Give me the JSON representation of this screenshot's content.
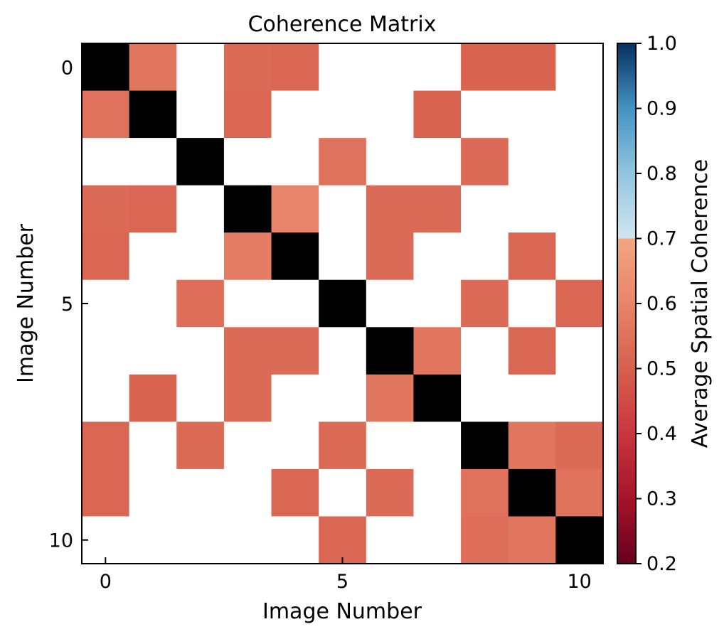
{
  "chart_data": {
    "type": "heatmap",
    "title": "Coherence Matrix",
    "xlabel": "Image Number",
    "ylabel": "Image Number",
    "xticks": [
      0,
      5,
      10
    ],
    "yticks": [
      0,
      5,
      10
    ],
    "xlim": [
      -0.5,
      10.5
    ],
    "ylim": [
      -0.5,
      10.5
    ],
    "y_inverted": true,
    "diagonal_color": "#000000",
    "missing_color": "#ffffff",
    "matrix": [
      [
        null,
        0.56,
        0,
        0.53,
        0.52,
        0,
        0,
        0,
        0.51,
        0.51,
        0
      ],
      [
        0.55,
        null,
        0,
        0.52,
        0,
        0,
        0,
        0.51,
        0,
        0,
        0
      ],
      [
        0,
        0,
        null,
        0,
        0,
        0.55,
        0,
        0,
        0.53,
        0,
        0
      ],
      [
        0.53,
        0.52,
        0,
        null,
        0.6,
        0,
        0.53,
        0.53,
        0,
        0,
        0
      ],
      [
        0.52,
        0,
        0,
        0.58,
        null,
        0,
        0.53,
        0,
        0,
        0.52,
        0
      ],
      [
        0,
        0,
        0.54,
        0,
        0,
        null,
        0,
        0,
        0.53,
        0,
        0.52
      ],
      [
        0,
        0,
        0,
        0.53,
        0.53,
        0,
        null,
        0.56,
        0,
        0.52,
        0
      ],
      [
        0,
        0.51,
        0,
        0.53,
        0,
        0,
        0.56,
        null,
        0,
        0,
        0
      ],
      [
        0.52,
        0,
        0.53,
        0,
        0,
        0.53,
        0,
        0,
        null,
        0.56,
        0.53
      ],
      [
        0.52,
        0,
        0,
        0,
        0.52,
        0,
        0.53,
        0,
        0.55,
        null,
        0.55
      ],
      [
        0,
        0,
        0,
        0,
        0,
        0.52,
        0,
        0,
        0.54,
        0.56,
        null
      ]
    ],
    "colorbar": {
      "label": "Average Spatial Coherence",
      "vmin": 0.2,
      "vmax": 1.0,
      "ticks": [
        "0.2",
        "0.3",
        "0.4",
        "0.5",
        "0.6",
        "0.7",
        "0.8",
        "0.9",
        "1.0"
      ],
      "colormap": "RdBu",
      "stops": [
        {
          "v": 0.2,
          "color": "#67001f"
        },
        {
          "v": 0.3,
          "color": "#a51429"
        },
        {
          "v": 0.4,
          "color": "#c9363e"
        },
        {
          "v": 0.5,
          "color": "#d6604d"
        },
        {
          "v": 0.6,
          "color": "#e8846a"
        },
        {
          "v": 0.7,
          "color": "#f4a582"
        },
        {
          "v": 0.7,
          "color": "#d1e5f0"
        },
        {
          "v": 0.8,
          "color": "#92c5de"
        },
        {
          "v": 0.9,
          "color": "#4393c3"
        },
        {
          "v": 1.0,
          "color": "#053061"
        }
      ]
    }
  }
}
